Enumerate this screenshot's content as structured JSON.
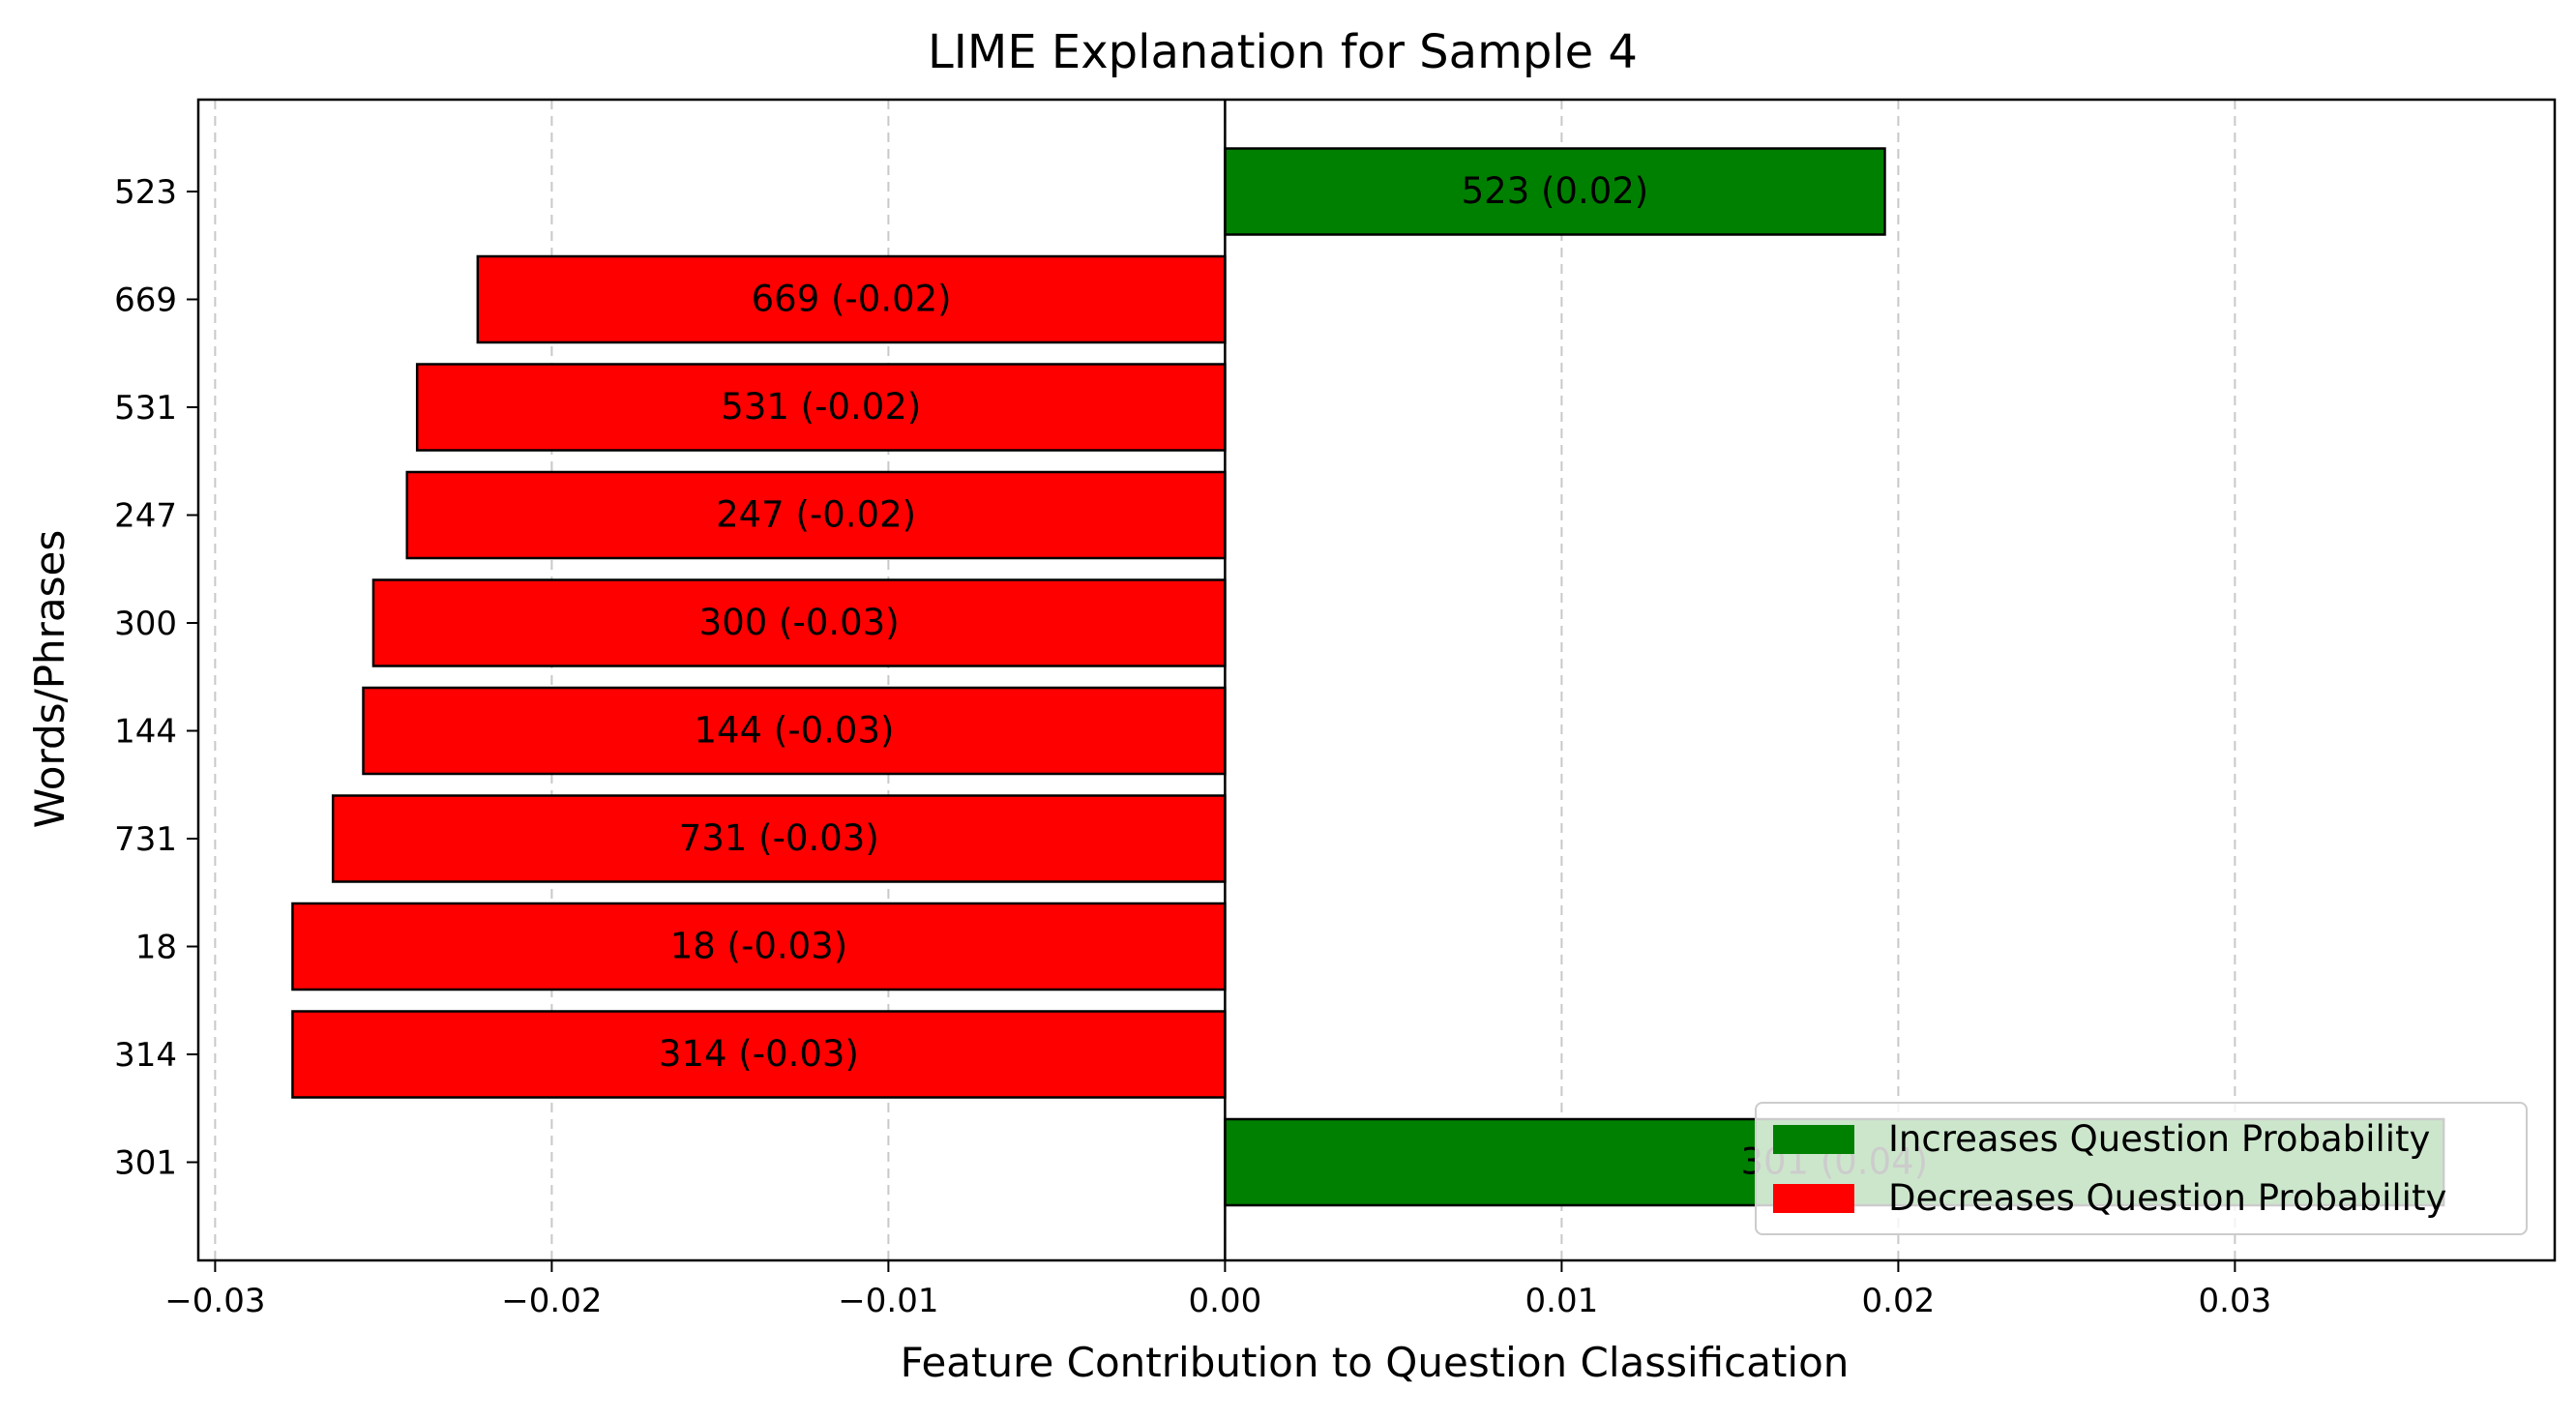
{
  "chart_data": {
    "type": "bar",
    "orientation": "horizontal",
    "title": "LIME Explanation for Sample 4",
    "xlabel": "Feature Contribution to Question Classification",
    "ylabel": "Words/Phrases",
    "categories": [
      "523",
      "669",
      "531",
      "247",
      "300",
      "144",
      "731",
      "18",
      "314",
      "301"
    ],
    "values": [
      0.0196,
      -0.0222,
      -0.024,
      -0.0243,
      -0.0253,
      -0.0256,
      -0.0265,
      -0.0277,
      -0.0277,
      0.0362
    ],
    "bar_labels": [
      "523 (0.02)",
      "669 (-0.02)",
      "531 (-0.02)",
      "247 (-0.02)",
      "300 (-0.03)",
      "144 (-0.03)",
      "731 (-0.03)",
      "18 (-0.03)",
      "314 (-0.03)",
      "301 (0.04)"
    ],
    "xlim": [
      -0.0305,
      0.0395
    ],
    "xticks": [
      -0.03,
      -0.02,
      -0.01,
      0.0,
      0.01,
      0.02,
      0.03
    ],
    "xtick_labels": [
      "−0.03",
      "−0.02",
      "−0.01",
      "0.00",
      "0.01",
      "0.02",
      "0.03"
    ],
    "grid": "x-dashed",
    "legend_position": "bottom-right",
    "legend": [
      {
        "label": "Increases Question Probability",
        "color": "#008000"
      },
      {
        "label": "Decreases Question Probability",
        "color": "#ff0000"
      }
    ],
    "colors": {
      "positive": "#008000",
      "negative": "#ff0000"
    }
  }
}
